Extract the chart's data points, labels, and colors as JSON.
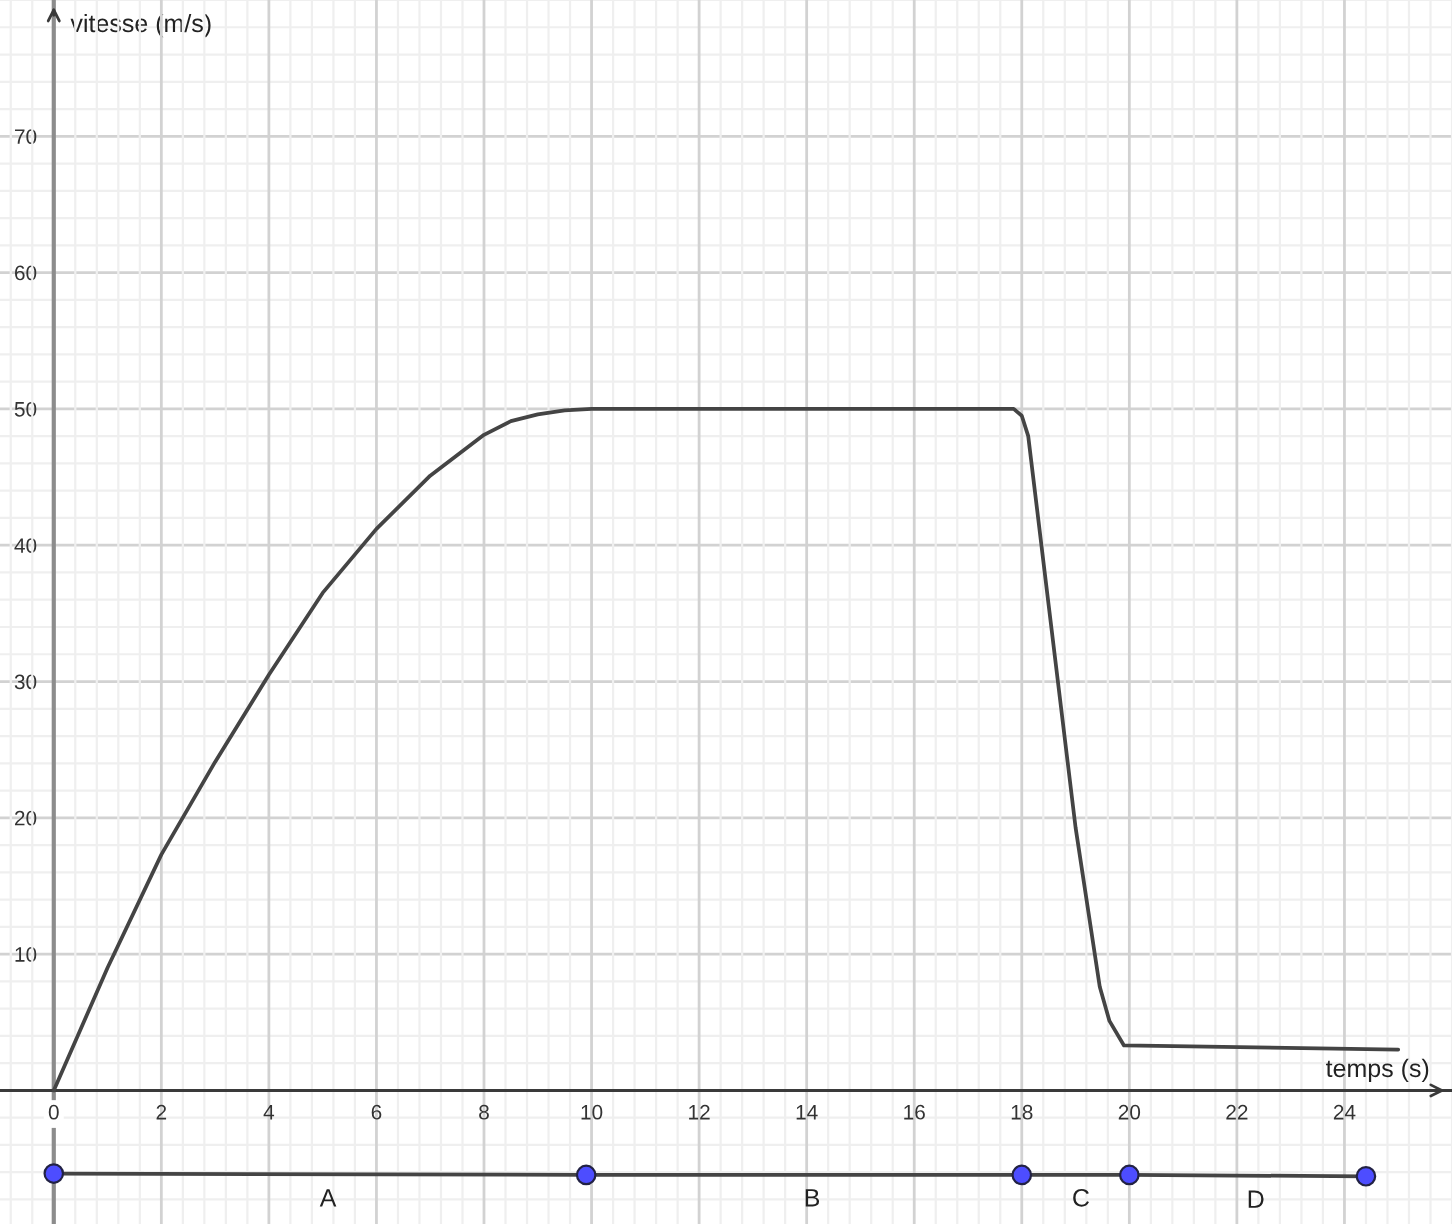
{
  "chart_data": {
    "type": "line",
    "xlabel": "temps (s)",
    "ylabel": "vitesse (m/s)",
    "xlim": [
      -1,
      26
    ],
    "ylim": [
      -9.8,
      80
    ],
    "xticks": [
      0,
      2,
      4,
      6,
      8,
      10,
      12,
      14,
      16,
      18,
      20,
      22,
      24
    ],
    "yticks": [
      10,
      20,
      30,
      40,
      50,
      60,
      70
    ],
    "grid": true,
    "series": [
      {
        "color": "#444444",
        "x": [
          0,
          1,
          2,
          3,
          4,
          5,
          6,
          7,
          8,
          8.5,
          9,
          9.5,
          10,
          17.85,
          18,
          18.12,
          18.5,
          19,
          19.45,
          19.63,
          19.9,
          25
        ],
        "values": [
          0,
          9,
          17.3,
          24.1,
          30.5,
          36.5,
          41.2,
          45.1,
          48.1,
          49.1,
          49.6,
          49.9,
          50,
          50,
          49.5,
          48,
          35.6,
          19.3,
          7.6,
          5.1,
          3.3,
          3.0
        ]
      },
      {
        "color": "#444444",
        "x": [
          0,
          9.9,
          18,
          20,
          24.4
        ],
        "values": [
          -6.1,
          -6.2,
          -6.2,
          -6.2,
          -6.3
        ]
      },
      {
        "type": "scatter",
        "color": "#4d4dff",
        "marker": "circle",
        "x": [
          0,
          9.9,
          18,
          20,
          24.4
        ],
        "values": [
          -6.1,
          -6.2,
          -6.2,
          -6.2,
          -6.3
        ]
      }
    ],
    "annotations": [
      {
        "text": "A",
        "x": 5.1,
        "y": -6.2
      },
      {
        "text": "B",
        "x": 14.1,
        "y": -6.2
      },
      {
        "text": "C",
        "x": 19.1,
        "y": -6.2
      },
      {
        "text": "D",
        "x": 22.35,
        "y": -6.3
      }
    ]
  }
}
